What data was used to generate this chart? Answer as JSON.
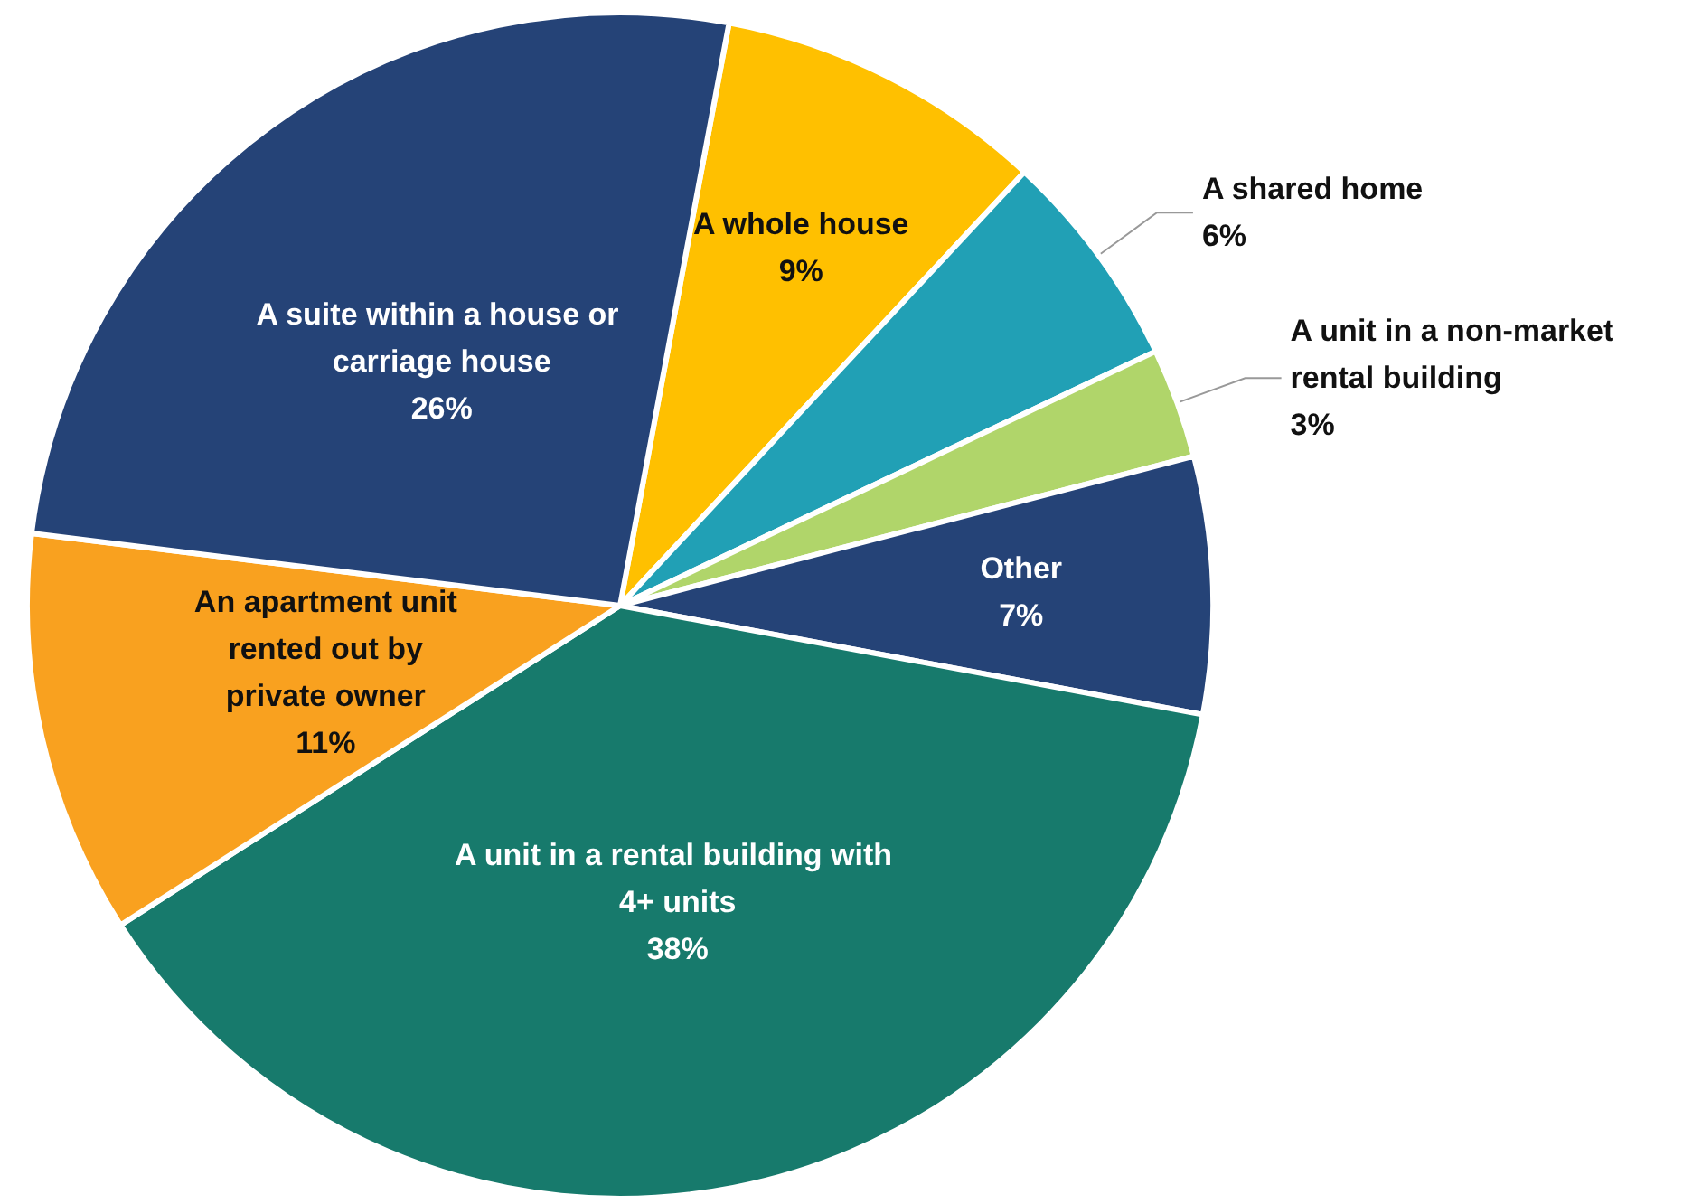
{
  "chart_data": {
    "type": "pie",
    "categories": [
      "A whole house",
      "A shared home",
      "A unit in a non-market rental building",
      "Other",
      "A unit in a rental building with 4+ units",
      "An apartment unit rented out by private owner",
      "A suite within a house or carriage house"
    ],
    "values": [
      9,
      6,
      3,
      7,
      38,
      11,
      26
    ],
    "colors": [
      "#ffc000",
      "#21a0b5",
      "#b0d56a",
      "#254377",
      "#177a6c",
      "#f9a11f",
      "#254377"
    ],
    "value_labels": [
      "9%",
      "6%",
      "3%",
      "7%",
      "38%",
      "11%",
      "26%"
    ]
  }
}
